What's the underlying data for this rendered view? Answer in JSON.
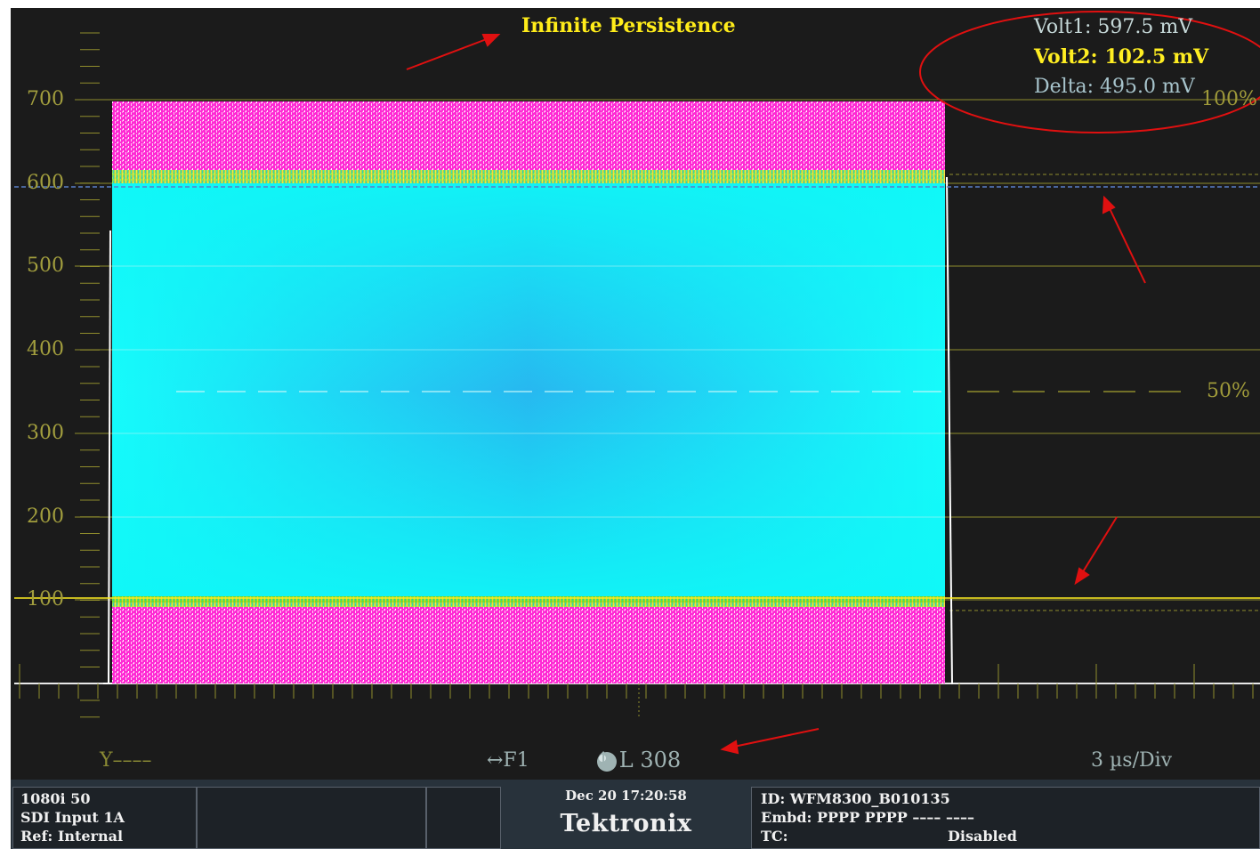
{
  "waveform": {
    "title": "Infinite Persistence",
    "cursors": {
      "volt1": "Volt1: 597.5 mV",
      "volt2": "Volt2: 102.5 mV",
      "delta": "Delta: 495.0 mV"
    },
    "scale_labels": [
      "700",
      "600",
      "500",
      "400",
      "300",
      "200",
      "100"
    ],
    "percent_labels": {
      "top": "100%",
      "mid": "50%"
    },
    "cursor_levels_mv": [
      597.5,
      102.5
    ],
    "footer": {
      "channel": "Y––––",
      "field": "↔F1",
      "line": "L 308",
      "time_per_div": "3 µs/Div"
    },
    "colors": {
      "fill": "#10f4f4",
      "edge": "#ff2ad4",
      "graticule": "#8f8c2c",
      "annotation": "#e01010"
    }
  },
  "status_bar": {
    "format": "1080i 50",
    "input": "SDI Input 1A",
    "reference": "Ref: Internal",
    "datetime": "Dec 20 17:20:58",
    "brand": "Tektronix",
    "id": "ID: WFM8300_B010135",
    "embedded": "Embd: PPPP PPPP –––– ––––",
    "tc_label": "TC:",
    "tc_value": "Disabled"
  }
}
